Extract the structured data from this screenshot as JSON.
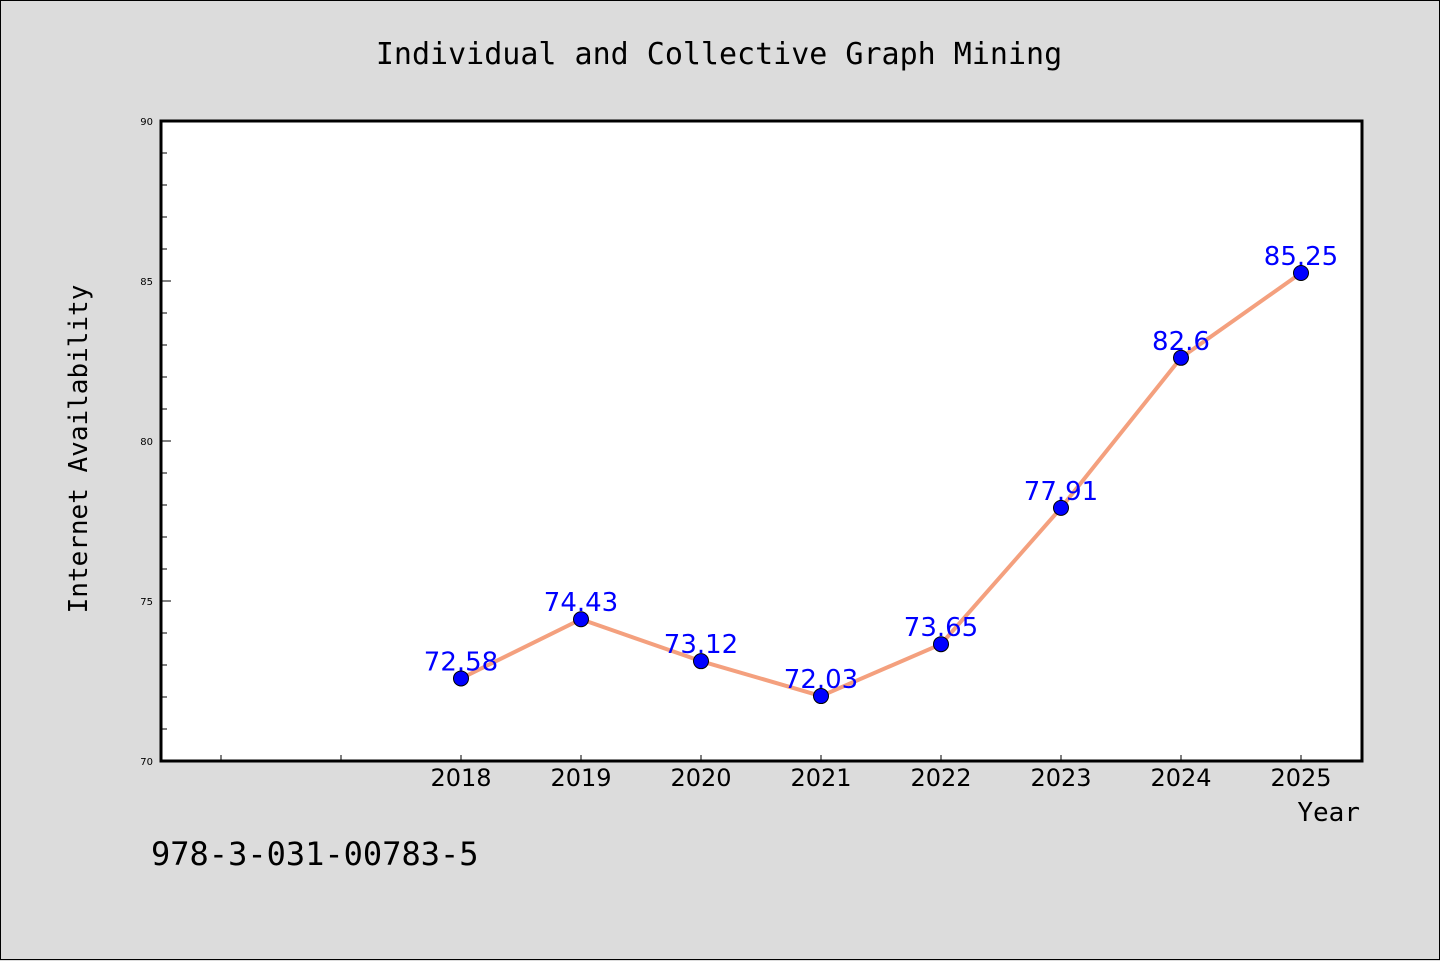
{
  "chart_data": {
    "type": "line",
    "title": "Individual and Collective Graph Mining",
    "xlabel": "Year",
    "ylabel": "Internet Availability",
    "categories": [
      "2018",
      "2019",
      "2020",
      "2021",
      "2022",
      "2023",
      "2024",
      "2025"
    ],
    "series": [
      {
        "values": [
          72.58,
          74.43,
          73.12,
          72.03,
          73.65,
          77.91,
          82.6,
          85.25
        ],
        "labels": [
          "72.58",
          "74.43",
          "73.12",
          "72.03",
          "73.65",
          "77.91",
          "82.6",
          "85.25"
        ],
        "line_color": "#f4a07e",
        "marker_color": "#0000ff"
      }
    ],
    "ylim": [
      70,
      90
    ],
    "yticks": [
      "70",
      "75",
      "80",
      "85",
      "90"
    ],
    "grid": false,
    "legend": "none"
  },
  "footer": {
    "code": "978-3-031-00783-5"
  },
  "colors": {
    "background": "#dcdcdc",
    "plot_area": "#ffffff",
    "data_label": "#0000ff"
  }
}
